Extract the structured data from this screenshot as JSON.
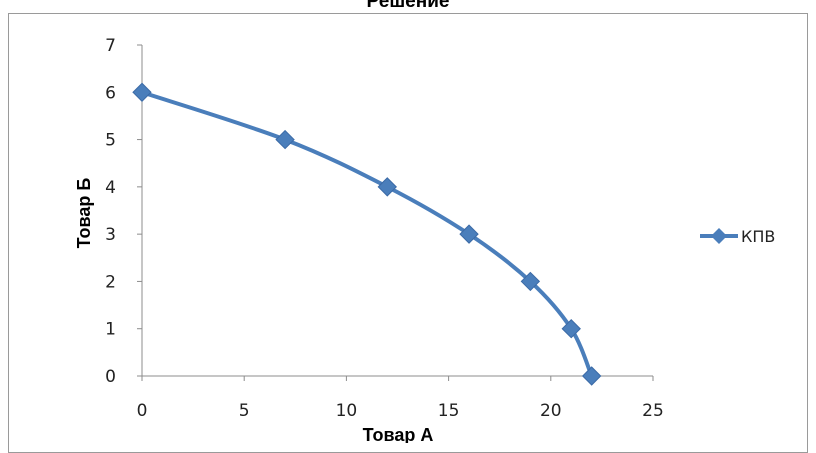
{
  "chart_data": {
    "type": "line",
    "title": "Решение",
    "xlabel": "Товар А",
    "ylabel": "Товар Б",
    "xlim": [
      0,
      25
    ],
    "ylim": [
      0,
      7
    ],
    "xticks": [
      0,
      5,
      10,
      15,
      20,
      25
    ],
    "yticks": [
      0,
      1,
      2,
      3,
      4,
      5,
      6,
      7
    ],
    "grid": false,
    "legend_position": "right",
    "series": [
      {
        "name": "КПВ",
        "color": "#4a7ebb",
        "marker": "diamond",
        "x": [
          0,
          7,
          12,
          16,
          19,
          21,
          22
        ],
        "y": [
          6,
          5,
          4,
          3,
          2,
          1,
          0
        ]
      }
    ]
  }
}
